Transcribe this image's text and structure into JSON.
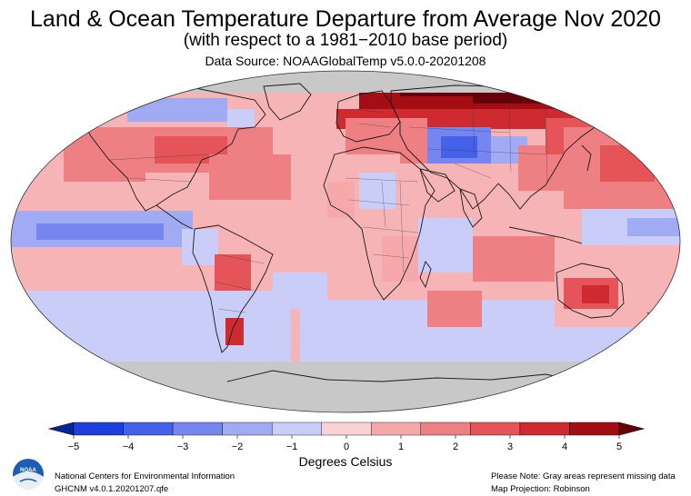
{
  "header": {
    "title": "Land & Ocean Temperature Departure from Average Nov 2020",
    "subtitle": "(with respect to a 1981−2010 base period)",
    "source": "Data Source: NOAAGlobalTemp v5.0.0-20201208"
  },
  "legend": {
    "unit_label": "Degrees Celsius",
    "ticks": [
      "−5",
      "−4",
      "−3",
      "−2",
      "−1",
      "0",
      "1",
      "2",
      "3",
      "4",
      "5"
    ],
    "min": -5,
    "max": 5,
    "colors": [
      "#08249c",
      "#1d3ee0",
      "#4561ea",
      "#7685ef",
      "#a1abf3",
      "#c9cdf7",
      "#fbd2d3",
      "#f5a9ab",
      "#ee7f82",
      "#e55458",
      "#cf2a30",
      "#a50d14",
      "#640008"
    ],
    "missing_color": "#c8c8c8"
  },
  "footer": {
    "org": "National Centers for Environmental Information",
    "dataset": "GHCNM v4.0.1.20201207.qfe",
    "note": "Please Note: Gray areas represent missing data",
    "projection": "Map Projection: Robinson",
    "logo_text": "NOAA"
  },
  "map": {
    "projection": "Robinson",
    "background_anomaly": "0 to 1",
    "regions": [
      {
        "name": "Siberia / Arctic Russia",
        "anomaly": 5
      },
      {
        "name": "Northern Europe",
        "anomaly": 3
      },
      {
        "name": "Central Asia (Kazakhstan)",
        "anomaly": -3
      },
      {
        "name": "Northwest Atlantic / North America",
        "anomaly": 2
      },
      {
        "name": "North Pacific",
        "anomaly": 2
      },
      {
        "name": "Hudson Bay region",
        "anomaly": -1.5
      },
      {
        "name": "Equatorial Pacific (La Niña)",
        "anomaly": -1
      },
      {
        "name": "Southern Ocean",
        "anomaly": -0.8
      },
      {
        "name": "Australia",
        "anomaly": 2
      },
      {
        "name": "South America (Paraguay/Argentina)",
        "anomaly": 2
      },
      {
        "name": "Antarctica",
        "anomaly": "missing"
      }
    ]
  }
}
